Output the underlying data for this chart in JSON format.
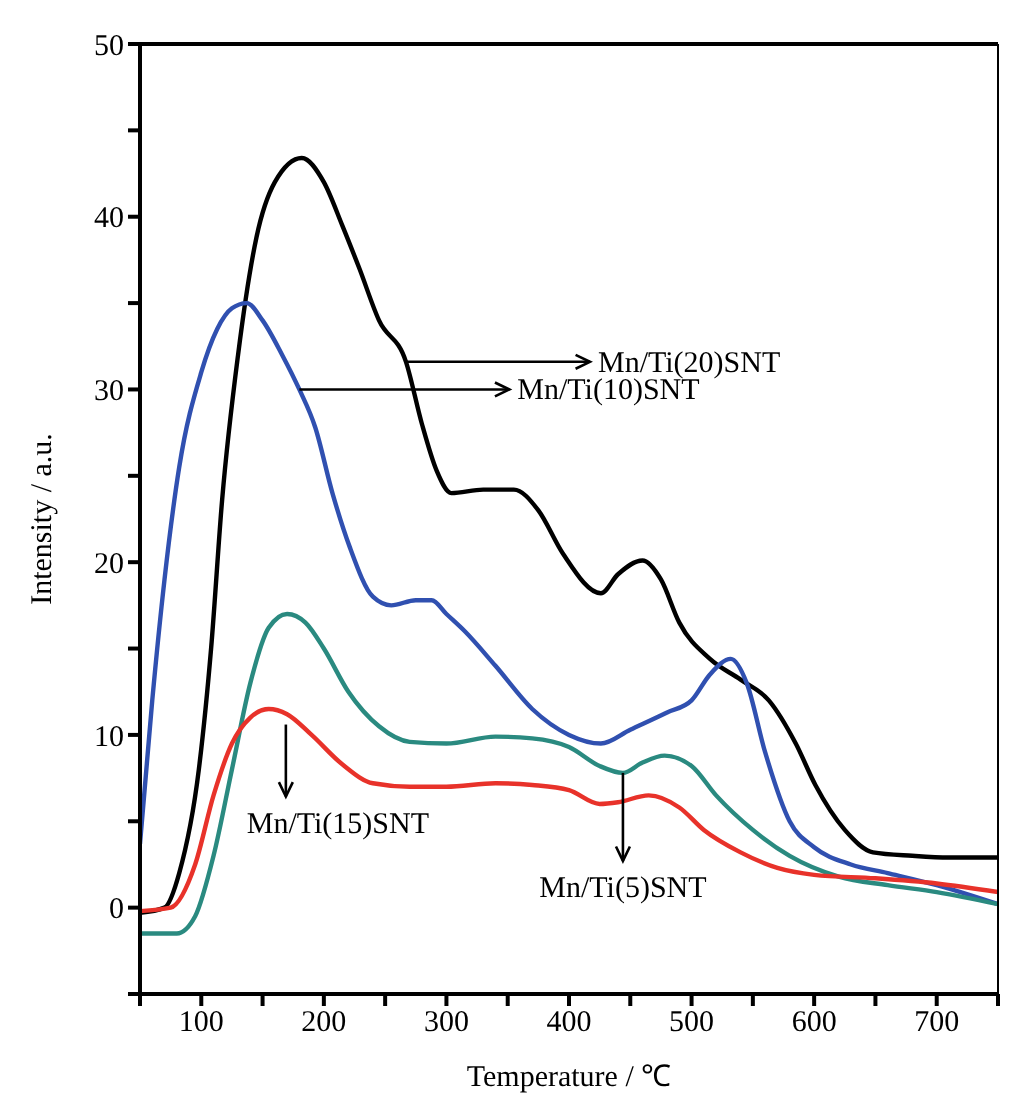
{
  "chart_data": {
    "type": "line",
    "xlabel": "Temperature / ℃",
    "ylabel": "Intensity / a.u.",
    "xlim": [
      50,
      750
    ],
    "xticks": [
      {
        "value": 50,
        "label": null
      },
      100,
      {
        "value": 150,
        "label": null
      },
      200,
      {
        "value": 250,
        "label": null
      },
      300,
      {
        "value": 350,
        "label": null
      },
      400,
      {
        "value": 450,
        "label": null
      },
      500,
      {
        "value": 550,
        "label": null
      },
      600,
      {
        "value": 650,
        "label": null
      },
      700,
      {
        "value": 750,
        "label": null
      }
    ],
    "ylim": [
      -5,
      50
    ],
    "yticks": [
      {
        "value": -5,
        "label": null
      },
      0,
      {
        "value": 5,
        "label": null
      },
      10,
      {
        "value": 15,
        "label": null
      },
      20,
      {
        "value": 25,
        "label": null
      },
      30,
      {
        "value": 35,
        "label": null
      },
      40,
      {
        "value": 45,
        "label": null
      },
      50
    ],
    "grid": false,
    "legend": false,
    "marker": "none",
    "line_style": "solid",
    "series": [
      {
        "color": "#000000",
        "x": [
          50,
          70,
          82,
          98,
          108,
          117,
          130,
          145,
          160,
          182,
          200,
          215,
          229,
          245,
          267,
          280,
          292,
          304,
          330,
          355,
          375,
          395,
          426,
          440,
          460,
          475,
          490,
          515,
          540,
          563,
          585,
          601,
          625,
          648,
          680,
          710,
          750
        ],
        "values": [
          -0.3,
          0,
          2,
          8,
          15,
          23.6,
          32,
          38.8,
          42,
          43.4,
          42,
          39.5,
          37,
          34,
          31.6,
          28,
          25.3,
          24,
          24.2,
          24.2,
          23,
          20.5,
          18.2,
          19.3,
          20.1,
          19,
          16.5,
          14.4,
          13.2,
          12,
          9.5,
          7.1,
          4.5,
          3.2,
          3,
          2.9,
          2.9
        ]
      },
      {
        "color": "#3050b0",
        "x": [
          50,
          60,
          70,
          82,
          100,
          113,
          125,
          137,
          150,
          166,
          180,
          193,
          207,
          221,
          240,
          255,
          275,
          288,
          300,
          315,
          340,
          370,
          400,
          426,
          450,
          480,
          500,
          515,
          532,
          545,
          560,
          580,
          600,
          630,
          660,
          700,
          750
        ],
        "values": [
          3.7,
          12,
          19,
          25.5,
          31,
          33.5,
          34.7,
          35,
          34,
          32,
          30,
          27.8,
          24,
          20.9,
          18,
          17.5,
          17.8,
          17.8,
          17,
          16,
          14,
          11.5,
          10,
          9.5,
          10.3,
          11.3,
          12,
          13.5,
          14.4,
          13,
          9,
          5,
          3.5,
          2.5,
          2,
          1.3,
          0.2
        ]
      },
      {
        "color": "#2a8a80",
        "x": [
          50,
          80,
          95,
          110,
          125,
          140,
          155,
          170,
          185,
          200,
          220,
          245,
          270,
          300,
          340,
          370,
          400,
          425,
          444,
          460,
          478,
          500,
          520,
          550,
          580,
          620,
          660,
          700,
          750
        ],
        "values": [
          -1.5,
          -1.5,
          -0.5,
          3,
          8,
          13,
          16.2,
          17,
          16.5,
          15,
          12.5,
          10.5,
          9.6,
          9.5,
          9.9,
          9.8,
          9.3,
          8.2,
          7.8,
          8.4,
          8.8,
          8.2,
          6.5,
          4.5,
          3,
          1.8,
          1.3,
          0.9,
          0.2
        ]
      },
      {
        "color": "#e8322a",
        "x": [
          50,
          75,
          95,
          110,
          125,
          140,
          155,
          170,
          190,
          215,
          240,
          270,
          300,
          340,
          370,
          400,
          425,
          440,
          465,
          490,
          510,
          540,
          570,
          600,
          650,
          700,
          750
        ],
        "values": [
          -0.2,
          0,
          2.5,
          6.5,
          9.5,
          11,
          11.5,
          11.2,
          10,
          8.3,
          7.2,
          7,
          7,
          7.2,
          7.1,
          6.8,
          6,
          6.1,
          6.5,
          5.8,
          4.5,
          3.2,
          2.3,
          1.9,
          1.7,
          1.4,
          0.9
        ]
      }
    ],
    "annotations": [
      {
        "text": "Mn/Ti(20)SNT",
        "x": 267,
        "y": 31.6
      },
      {
        "text": "Mn/Ti(10)SNT",
        "x": 180,
        "y": 30
      },
      {
        "text": "Mn/Ti(15)SNT",
        "x": 169,
        "y": 10.6
      },
      {
        "text": "Mn/Ti(5)SNT",
        "x": 444,
        "y": 7.8
      }
    ]
  }
}
